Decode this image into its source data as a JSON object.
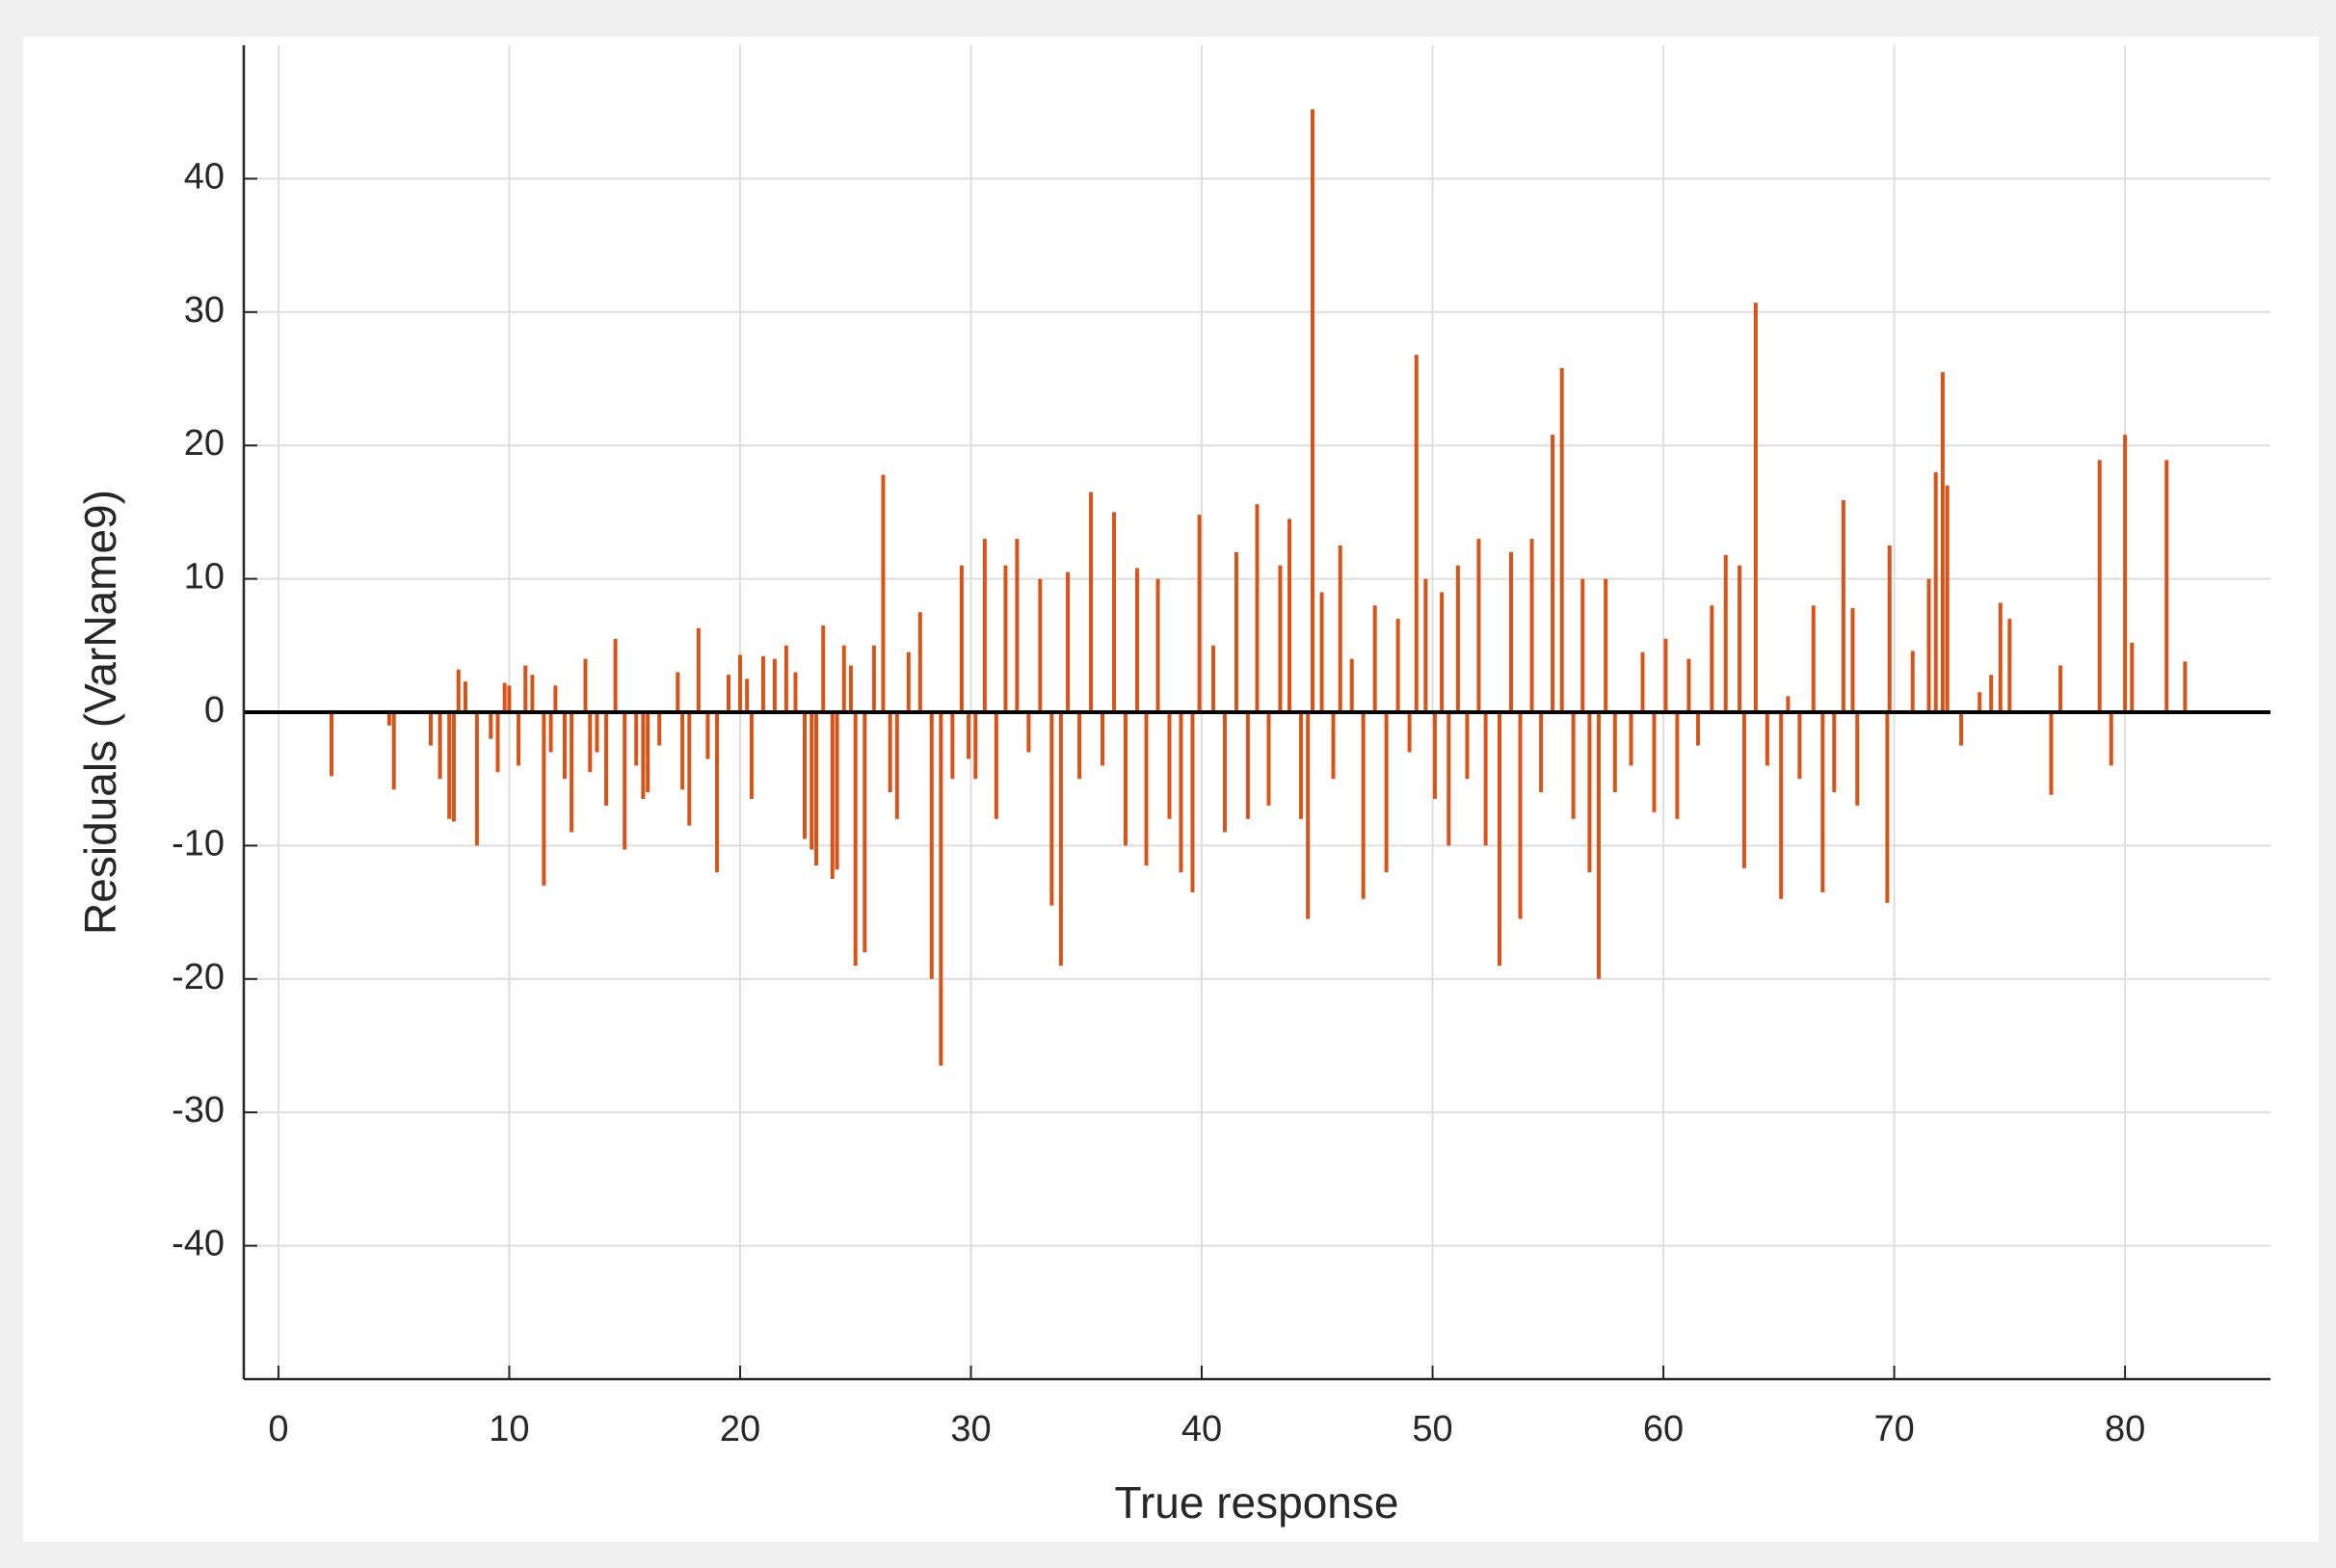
{
  "chart_data": {
    "type": "stem",
    "x_label": "True response",
    "y_label": "Residuals (VarName9)",
    "color": "#d95319",
    "grid": true,
    "xlim": [
      -1.5,
      86.3
    ],
    "ylim": [
      -50,
      50
    ],
    "xticks": [
      0,
      10,
      20,
      30,
      40,
      50,
      60,
      70,
      80
    ],
    "yticks": [
      -40,
      -30,
      -20,
      -10,
      0,
      10,
      20,
      30,
      40
    ],
    "x": [
      2.3,
      4.8,
      5,
      6.6,
      7,
      7.4,
      7.6,
      7.8,
      8.1,
      8.6,
      9.2,
      9.5,
      9.8,
      10,
      10.4,
      10.7,
      11,
      11.5,
      11.8,
      12,
      12.4,
      12.7,
      13.3,
      13.5,
      13.8,
      14.2,
      14.6,
      15,
      15.5,
      15.8,
      16,
      16.5,
      17.3,
      17.5,
      17.8,
      18.2,
      18.6,
      19,
      19.5,
      20,
      20.3,
      20.5,
      21,
      21.5,
      22,
      22.4,
      22.8,
      23.1,
      23.3,
      23.6,
      24,
      24.2,
      24.5,
      24.8,
      25,
      25.4,
      25.8,
      26.2,
      26.5,
      26.8,
      27.3,
      27.8,
      28.3,
      28.7,
      29.2,
      29.6,
      29.9,
      30.2,
      30.6,
      31.1,
      31.5,
      32,
      32.5,
      33,
      33.5,
      33.9,
      34.2,
      34.7,
      35.2,
      35.7,
      36.2,
      36.7,
      37.2,
      37.6,
      38.1,
      38.6,
      39.1,
      39.6,
      39.9,
      40.5,
      41,
      41.5,
      42,
      42.4,
      42.9,
      43.4,
      43.8,
      44.3,
      44.6,
      44.8,
      45.2,
      45.7,
      46,
      46.5,
      47,
      47.5,
      48,
      48.5,
      49,
      49.3,
      49.7,
      50.1,
      50.4,
      50.7,
      51.1,
      51.5,
      52,
      52.3,
      52.9,
      53.4,
      53.8,
      54.3,
      54.7,
      55.2,
      55.6,
      56.1,
      56.5,
      56.8,
      57.2,
      57.5,
      57.9,
      58.6,
      59.1,
      59.6,
      60.1,
      60.6,
      61.1,
      61.5,
      62.1,
      62.7,
      63.3,
      63.5,
      64,
      64.5,
      65.1,
      65.4,
      65.9,
      66.5,
      66.9,
      67.4,
      67.8,
      68.2,
      68.4,
      69.7,
      69.8,
      70.8,
      71.5,
      71.8,
      72.1,
      72.3,
      72.9,
      73.7,
      74.2,
      74.6,
      75,
      76.8,
      77.2,
      78.9,
      79.4,
      80,
      80.3,
      81.8,
      82.6
    ],
    "values": [
      -4.8,
      -1,
      -5.8,
      -2.5,
      -5,
      -8,
      -8.2,
      3.2,
      2.3,
      -10,
      -2,
      -4.5,
      2.2,
      2,
      -4,
      3.5,
      2.8,
      -13,
      -3,
      2,
      -5,
      -9,
      4,
      -4.5,
      -3,
      -7,
      5.5,
      -10.3,
      -4,
      -6.5,
      -6,
      -2.5,
      3,
      -5.8,
      -8.5,
      6.3,
      -3.5,
      -12,
      2.8,
      4.3,
      2.5,
      -6.5,
      4.2,
      4,
      5,
      3,
      -9.5,
      -10.3,
      -11.5,
      6.5,
      -12.5,
      -11.8,
      5,
      3.5,
      -19,
      -18,
      5,
      17.8,
      -6,
      -8,
      4.5,
      7.5,
      -20,
      -26.5,
      -5,
      11,
      -3.5,
      -5,
      13,
      -8,
      11,
      13,
      -3,
      10,
      -14.5,
      -19,
      10.5,
      -5,
      16.5,
      -4,
      15,
      -10,
      10.8,
      -11.5,
      10,
      -8,
      -12,
      -13.5,
      14.8,
      5,
      -9,
      12,
      -8,
      15.6,
      -7,
      11,
      14.5,
      -8,
      -15.5,
      45.2,
      9,
      -5,
      12.5,
      4,
      -14,
      8,
      -12,
      7,
      -3,
      26.8,
      10,
      -6.5,
      9,
      -10,
      11,
      -5,
      13,
      -10,
      -19,
      12,
      -15.5,
      13,
      -6,
      20.8,
      25.8,
      -8,
      10,
      -12,
      -20,
      10,
      -6,
      -4,
      4.5,
      -7.5,
      5.5,
      -8,
      4,
      -2.5,
      8,
      11.8,
      11,
      -11.7,
      30.7,
      -4,
      -14,
      1.2,
      -5,
      8,
      -13.5,
      -6,
      15.9,
      7.8,
      -7,
      -14.3,
      12.5,
      4.6,
      10,
      18,
      25.5,
      17,
      -2.5,
      1.5,
      2.8,
      8.2,
      7,
      -6.2,
      3.5,
      18.9,
      -4,
      20.8,
      5.2,
      18.9,
      3.8
    ]
  }
}
